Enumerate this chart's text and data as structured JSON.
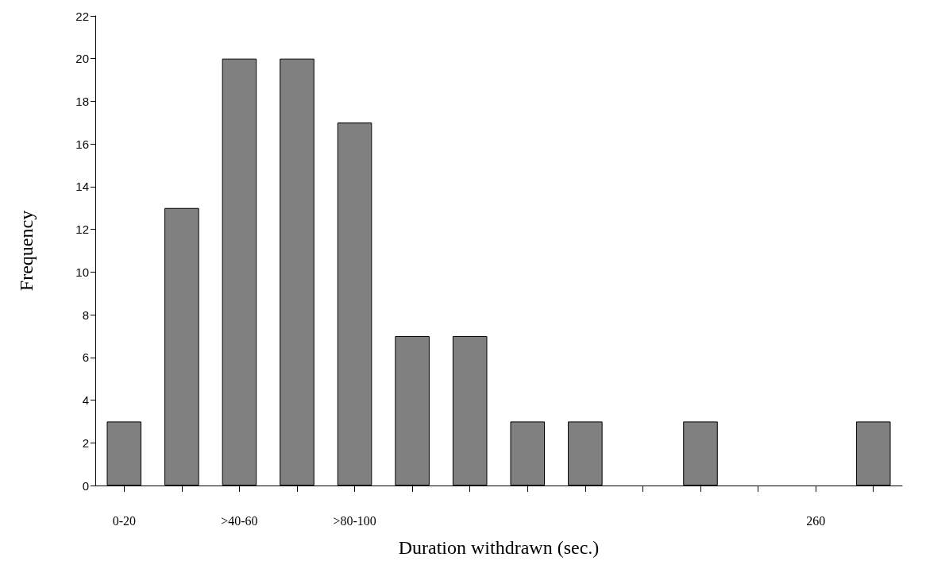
{
  "chart_data": {
    "type": "bar",
    "xlabel": "Duration withdrawn (sec.)",
    "ylabel": "Frequency",
    "categories": [
      "0-20",
      null,
      ">40-60",
      null,
      ">80-100",
      null,
      null,
      null,
      null,
      null,
      null,
      null,
      "260",
      null
    ],
    "values": [
      3,
      13,
      20,
      20,
      17,
      7,
      7,
      3,
      3,
      null,
      3,
      null,
      null,
      3
    ],
    "color": "#808080",
    "ylim": [
      0,
      22
    ],
    "yticks": [
      0,
      2,
      4,
      6,
      8,
      10,
      12,
      14,
      16,
      18,
      20,
      22
    ],
    "grid": false
  }
}
